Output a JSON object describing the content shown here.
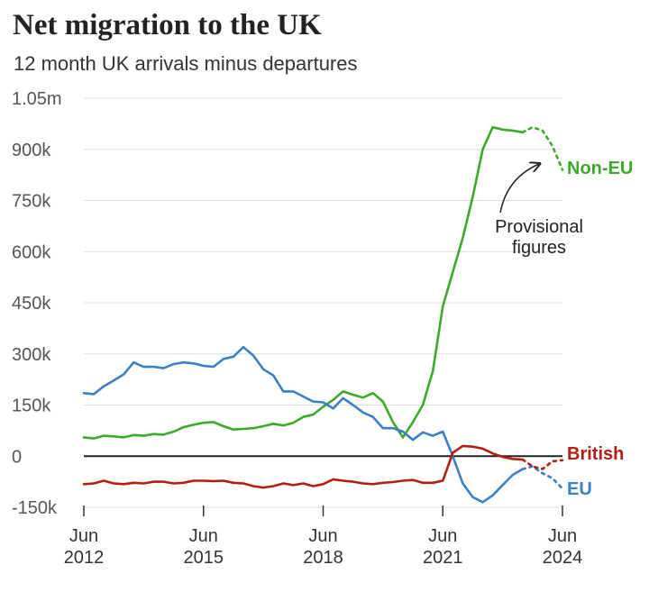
{
  "chart_data": {
    "type": "line",
    "title": "Net migration to the UK",
    "subtitle": "12 month UK arrivals minus departures",
    "xlabel": "",
    "ylabel": "",
    "xlim": [
      2012.45,
      2024.45
    ],
    "ylim": [
      -150000,
      1050000
    ],
    "y_ticks": [
      -150000,
      0,
      150000,
      300000,
      450000,
      600000,
      750000,
      900000,
      1050000
    ],
    "y_tick_labels": [
      "-150k",
      "0",
      "150k",
      "300k",
      "450k",
      "600k",
      "750k",
      "900k",
      "1.05m"
    ],
    "x_ticks": [
      {
        "x": 2012.45,
        "month": "Jun",
        "year": "2012"
      },
      {
        "x": 2015.45,
        "month": "Jun",
        "year": "2015"
      },
      {
        "x": 2018.45,
        "month": "Jun",
        "year": "2018"
      },
      {
        "x": 2021.45,
        "month": "Jun",
        "year": "2021"
      },
      {
        "x": 2024.45,
        "month": "Jun",
        "year": "2024"
      }
    ],
    "grid": true,
    "annotation": {
      "lines": [
        "Provisional",
        "figures"
      ]
    },
    "series": [
      {
        "name": "Non-EU",
        "color": "#3da82b",
        "x": [
          2012.45,
          2012.7,
          2012.95,
          2013.2,
          2013.45,
          2013.7,
          2013.95,
          2014.2,
          2014.45,
          2014.7,
          2014.95,
          2015.2,
          2015.45,
          2015.7,
          2015.95,
          2016.2,
          2016.45,
          2016.7,
          2016.95,
          2017.2,
          2017.45,
          2017.7,
          2017.95,
          2018.2,
          2018.45,
          2018.7,
          2018.95,
          2019.2,
          2019.45,
          2019.7,
          2019.95,
          2020.2,
          2020.45,
          2020.7,
          2020.95,
          2021.2,
          2021.45,
          2021.7,
          2021.95,
          2022.2,
          2022.45,
          2022.7,
          2022.95,
          2023.2,
          2023.45
        ],
        "y": [
          55000,
          52000,
          60000,
          58000,
          55000,
          62000,
          60000,
          65000,
          63000,
          72000,
          85000,
          92000,
          98000,
          100000,
          88000,
          78000,
          80000,
          82000,
          88000,
          95000,
          90000,
          98000,
          115000,
          122000,
          145000,
          165000,
          190000,
          180000,
          172000,
          185000,
          160000,
          100000,
          55000,
          100000,
          150000,
          250000,
          440000,
          540000,
          640000,
          760000,
          900000,
          965000,
          958000,
          955000,
          950000
        ],
        "provisional": {
          "x": [
            2023.45,
            2023.7,
            2023.95,
            2024.2,
            2024.45
          ],
          "y": [
            950000,
            965000,
            955000,
            910000,
            840000
          ]
        }
      },
      {
        "name": "EU",
        "color": "#3b7fc4",
        "x": [
          2012.45,
          2012.7,
          2012.95,
          2013.2,
          2013.45,
          2013.7,
          2013.95,
          2014.2,
          2014.45,
          2014.7,
          2014.95,
          2015.2,
          2015.45,
          2015.7,
          2015.95,
          2016.2,
          2016.45,
          2016.7,
          2016.95,
          2017.2,
          2017.45,
          2017.7,
          2017.95,
          2018.2,
          2018.45,
          2018.7,
          2018.95,
          2019.2,
          2019.45,
          2019.7,
          2019.95,
          2020.2,
          2020.45,
          2020.7,
          2020.95,
          2021.2,
          2021.45,
          2021.7,
          2021.95,
          2022.2,
          2022.45,
          2022.7,
          2022.95,
          2023.2,
          2023.45
        ],
        "y": [
          185000,
          182000,
          205000,
          222000,
          240000,
          275000,
          262000,
          262000,
          258000,
          270000,
          275000,
          272000,
          265000,
          262000,
          285000,
          292000,
          320000,
          295000,
          255000,
          237000,
          190000,
          190000,
          175000,
          160000,
          158000,
          140000,
          170000,
          150000,
          128000,
          115000,
          82000,
          82000,
          72000,
          48000,
          70000,
          60000,
          72000,
          0,
          -80000,
          -120000,
          -135000,
          -115000,
          -85000,
          -55000,
          -38000
        ],
        "provisional": {
          "x": [
            2023.45,
            2023.7,
            2023.95,
            2024.2,
            2024.45
          ],
          "y": [
            -38000,
            -30000,
            -50000,
            -65000,
            -95000
          ]
        }
      },
      {
        "name": "British",
        "color": "#b51d14",
        "x": [
          2012.45,
          2012.7,
          2012.95,
          2013.2,
          2013.45,
          2013.7,
          2013.95,
          2014.2,
          2014.45,
          2014.7,
          2014.95,
          2015.2,
          2015.45,
          2015.7,
          2015.95,
          2016.2,
          2016.45,
          2016.7,
          2016.95,
          2017.2,
          2017.45,
          2017.7,
          2017.95,
          2018.2,
          2018.45,
          2018.7,
          2018.95,
          2019.2,
          2019.45,
          2019.7,
          2019.95,
          2020.2,
          2020.45,
          2020.7,
          2020.95,
          2021.2,
          2021.45,
          2021.7,
          2021.95,
          2022.2,
          2022.45,
          2022.7,
          2022.95,
          2023.2,
          2023.45
        ],
        "y": [
          -82000,
          -80000,
          -72000,
          -80000,
          -82000,
          -78000,
          -80000,
          -75000,
          -75000,
          -80000,
          -78000,
          -72000,
          -72000,
          -73000,
          -72000,
          -78000,
          -80000,
          -88000,
          -92000,
          -88000,
          -80000,
          -85000,
          -80000,
          -88000,
          -82000,
          -68000,
          -72000,
          -75000,
          -80000,
          -82000,
          -78000,
          -76000,
          -72000,
          -70000,
          -78000,
          -78000,
          -72000,
          10000,
          30000,
          28000,
          22000,
          8000,
          -2000,
          -8000,
          -10000
        ],
        "provisional": {
          "x": [
            2023.45,
            2023.7,
            2023.95,
            2024.2,
            2024.45
          ],
          "y": [
            -10000,
            -30000,
            -38000,
            -15000,
            -12000
          ]
        }
      }
    ]
  }
}
